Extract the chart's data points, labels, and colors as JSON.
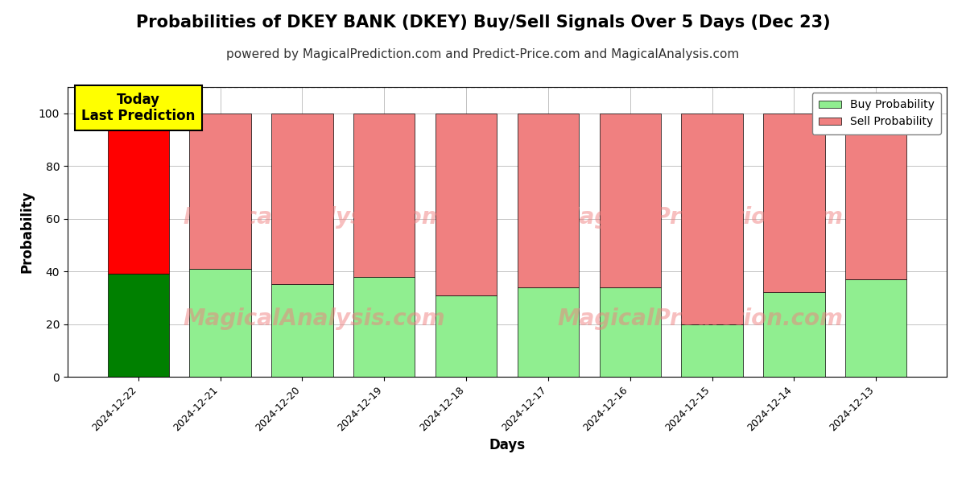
{
  "title": "Probabilities of DKEY BANK (DKEY) Buy/Sell Signals Over 5 Days (Dec 23)",
  "subtitle": "powered by MagicalPrediction.com and Predict-Price.com and MagicalAnalysis.com",
  "xlabel": "Days",
  "ylabel": "Probability",
  "dates": [
    "2024-12-22",
    "2024-12-21",
    "2024-12-20",
    "2024-12-19",
    "2024-12-18",
    "2024-12-17",
    "2024-12-16",
    "2024-12-15",
    "2024-12-14",
    "2024-12-13"
  ],
  "buy_probs": [
    39,
    41,
    35,
    38,
    31,
    34,
    34,
    20,
    32,
    37
  ],
  "sell_probs": [
    61,
    59,
    65,
    62,
    69,
    66,
    66,
    80,
    68,
    63
  ],
  "today_buy_color": "#008000",
  "today_sell_color": "#FF0000",
  "other_buy_color": "#90EE90",
  "other_sell_color": "#F08080",
  "today_annotation_bg": "#FFFF00",
  "today_annotation_text": "Today\nLast Prediction",
  "watermark_texts": [
    "MagicalAnalysis.com",
    "MagicalPrediction.com"
  ],
  "ylim": [
    0,
    110
  ],
  "dashed_line_y": 110,
  "legend_buy_label": "Buy Probability",
  "legend_sell_label": "Sell Probability",
  "title_fontsize": 15,
  "subtitle_fontsize": 11,
  "axis_label_fontsize": 12,
  "bar_width": 0.75,
  "grid_color": "#aaaaaa",
  "background_color": "#ffffff"
}
